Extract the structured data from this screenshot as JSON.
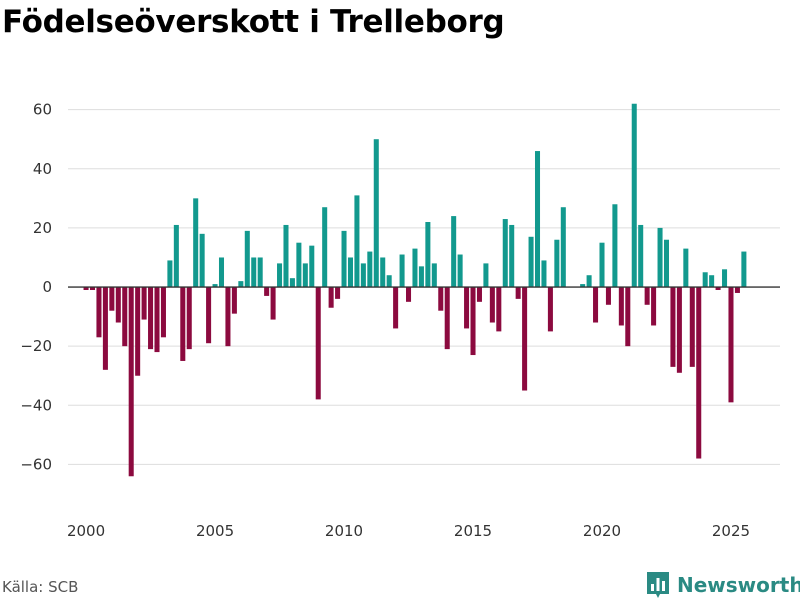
{
  "title": "Födelseöverskott i Trelleborg",
  "source": "Källa: SCB",
  "brand": "Newsworthy",
  "colors": {
    "positive": "#12998e",
    "negative": "#8c0a3f",
    "grid": "#dddddd",
    "zero": "#333333"
  },
  "chart_data": {
    "type": "bar",
    "title": "Födelseöverskott i Trelleborg",
    "xlabel": "",
    "ylabel": "",
    "ylim": [
      -70,
      68
    ],
    "xlim": [
      1999.3,
      2026.9
    ],
    "yticks": [
      60,
      40,
      20,
      0,
      -20,
      -40,
      -60
    ],
    "ytick_labels": [
      "60",
      "40",
      "20",
      "0",
      "−20",
      "−40",
      "−60"
    ],
    "xticks": [
      2000,
      2005,
      2010,
      2015,
      2020,
      2025
    ],
    "xtick_labels": [
      "2000",
      "2005",
      "2010",
      "2015",
      "2020",
      "2025"
    ],
    "series": [
      {
        "name": "Födelseöverskott",
        "start": 2000.0,
        "step": 0.25,
        "values": [
          -1,
          -1,
          -17,
          -28,
          -8,
          -12,
          -20,
          -64,
          -30,
          -11,
          -21,
          -22,
          -17,
          9,
          21,
          -25,
          -21,
          30,
          18,
          -19,
          1,
          10,
          -20,
          -9,
          2,
          19,
          10,
          10,
          -3,
          -11,
          8,
          21,
          3,
          15,
          8,
          14,
          -38,
          27,
          -7,
          -4,
          19,
          10,
          31,
          8,
          12,
          50,
          10,
          4,
          -14,
          11,
          -5,
          13,
          7,
          22,
          8,
          -8,
          -21,
          24,
          11,
          -14,
          -23,
          -5,
          8,
          -12,
          -15,
          23,
          21,
          -4,
          -35,
          17,
          46,
          9,
          -15,
          16,
          27,
          0,
          0,
          1,
          4,
          -12,
          15,
          -6,
          28,
          -13,
          -20,
          62,
          21,
          -6,
          -13,
          20,
          16,
          -27,
          -29,
          13,
          -27,
          -58,
          5,
          4,
          -1,
          6,
          -39,
          -2,
          12
        ]
      }
    ]
  }
}
